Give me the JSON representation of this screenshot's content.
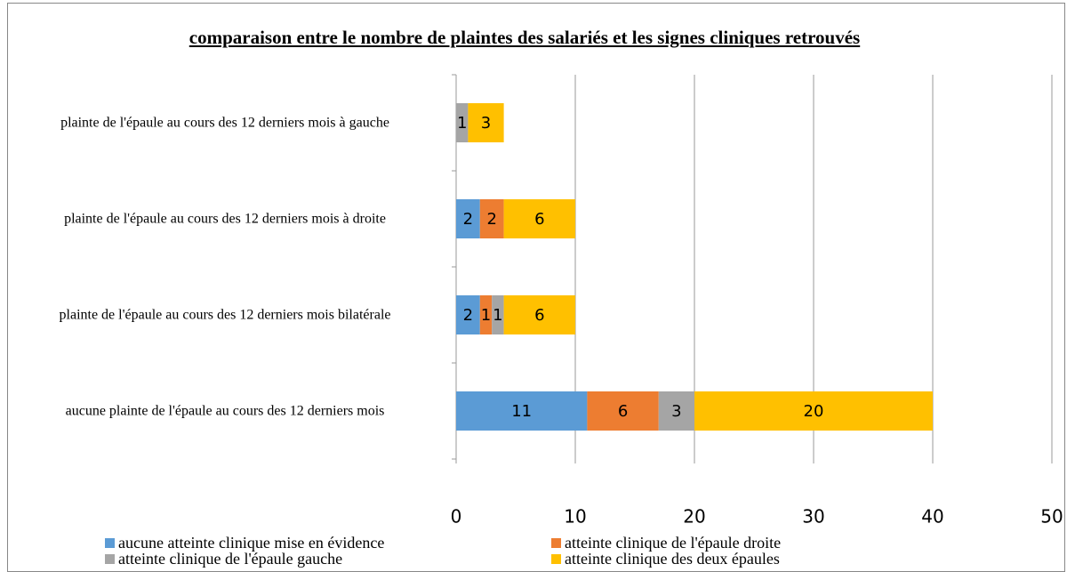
{
  "chart_data": {
    "type": "stacked_barh",
    "title": "comparaison entre le nombre de plaintes des salariés et les signes cliniques retrouvés",
    "categories": [
      "plainte de l'épaule au cours des 12 derniers mois à gauche",
      "plainte de l'épaule au cours des 12 derniers mois à droite",
      "plainte de l'épaule au cours des 12 derniers mois bilatérale",
      "aucune plainte de l'épaule au cours des 12 derniers mois"
    ],
    "series": [
      {
        "name": "aucune atteinte clinique mise en évidence",
        "color": "#5b9bd5",
        "values": [
          null,
          2,
          2,
          11
        ]
      },
      {
        "name": "atteinte clinique de l'épaule droite",
        "color": "#ed7d31",
        "values": [
          null,
          2,
          1,
          6
        ]
      },
      {
        "name": "atteinte clinique de l'épaule gauche",
        "color": "#a5a5a5",
        "values": [
          1,
          null,
          1,
          3
        ]
      },
      {
        "name": "atteinte clinique des deux épaules",
        "color": "#ffc000",
        "values": [
          3,
          6,
          6,
          20
        ]
      }
    ],
    "xlim": [
      0,
      50
    ],
    "xticks": [
      0,
      10,
      20,
      30,
      40,
      50
    ],
    "grid": true
  }
}
